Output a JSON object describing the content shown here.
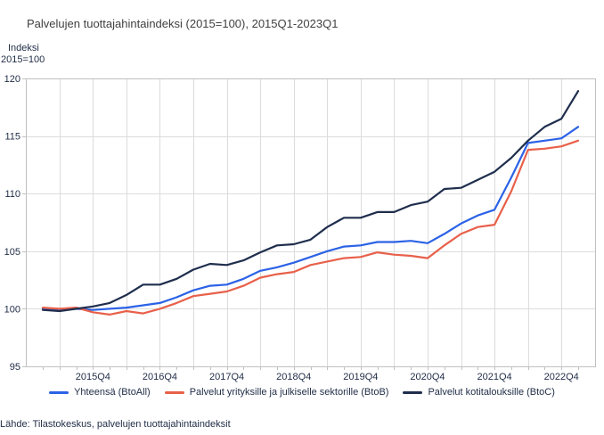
{
  "title": "Palvelujen tuottajahintaindeksi (2015=100), 2015Q1-2023Q1",
  "y_axis_unit": {
    "line1": "Indeksi",
    "line2": "2015=100"
  },
  "source": "Lähde: Tilastokeskus, palvelujen tuottajahintaindeksit",
  "colors": {
    "grid": "#dcdcdc",
    "axis_border": "#c0c0c0",
    "tick_text": "#1f2c46",
    "title_text": "#404040"
  },
  "chart_data": {
    "type": "line",
    "title": "Palvelujen tuottajahintaindeksi (2015=100), 2015Q1-2023Q1",
    "xlabel": "",
    "ylabel": "Indeksi 2015=100",
    "ylim": [
      95,
      120
    ],
    "y_ticks": [
      95,
      100,
      105,
      110,
      115,
      120
    ],
    "grid": true,
    "legend_position": "bottom",
    "categories": [
      "2015Q1",
      "2015Q2",
      "2015Q3",
      "2015Q4",
      "2016Q1",
      "2016Q2",
      "2016Q3",
      "2016Q4",
      "2017Q1",
      "2017Q2",
      "2017Q3",
      "2017Q4",
      "2018Q1",
      "2018Q2",
      "2018Q3",
      "2018Q4",
      "2019Q1",
      "2019Q2",
      "2019Q3",
      "2019Q4",
      "2020Q1",
      "2020Q2",
      "2020Q3",
      "2020Q4",
      "2021Q1",
      "2021Q2",
      "2021Q3",
      "2021Q4",
      "2022Q1",
      "2022Q2",
      "2022Q3",
      "2022Q4",
      "2023Q1"
    ],
    "x_tick_labels": [
      "2015Q4",
      "2016Q4",
      "2017Q4",
      "2018Q4",
      "2019Q4",
      "2020Q4",
      "2021Q4",
      "2022Q4"
    ],
    "x_tick_positions": [
      3,
      7,
      11,
      15,
      19,
      23,
      27,
      31
    ],
    "series": [
      {
        "name": "Yhteensä (BtoAll)",
        "color": "#2b62e6",
        "values": [
          100.0,
          99.9,
          100.0,
          99.9,
          100.0,
          100.1,
          100.3,
          100.5,
          101.0,
          101.6,
          102.0,
          102.1,
          102.6,
          103.3,
          103.6,
          104.0,
          104.5,
          105.0,
          105.4,
          105.5,
          105.8,
          105.8,
          105.9,
          105.7,
          106.5,
          107.4,
          108.1,
          108.6,
          111.4,
          114.4,
          114.6,
          114.8,
          115.8
        ]
      },
      {
        "name": "Palvelut yrityksille ja julkiselle sektorille (BtoB)",
        "color": "#e8604a",
        "values": [
          100.1,
          100.0,
          100.1,
          99.7,
          99.5,
          99.8,
          99.6,
          100.0,
          100.5,
          101.1,
          101.3,
          101.5,
          102.0,
          102.7,
          103.0,
          103.2,
          103.8,
          104.1,
          104.4,
          104.5,
          104.9,
          104.7,
          104.6,
          104.4,
          105.5,
          106.5,
          107.1,
          107.3,
          110.2,
          113.8,
          113.9,
          114.1,
          114.6
        ]
      },
      {
        "name": "Palvelut kotitalouksille (BtoC)",
        "color": "#1f2e4d",
        "values": [
          99.9,
          99.8,
          100.0,
          100.2,
          100.5,
          101.2,
          102.1,
          102.1,
          102.6,
          103.4,
          103.9,
          103.8,
          104.2,
          104.9,
          105.5,
          105.6,
          106.0,
          107.1,
          107.9,
          107.9,
          108.4,
          108.4,
          109.0,
          109.3,
          110.4,
          110.5,
          111.2,
          111.9,
          113.1,
          114.6,
          115.8,
          116.5,
          118.9
        ]
      }
    ]
  }
}
